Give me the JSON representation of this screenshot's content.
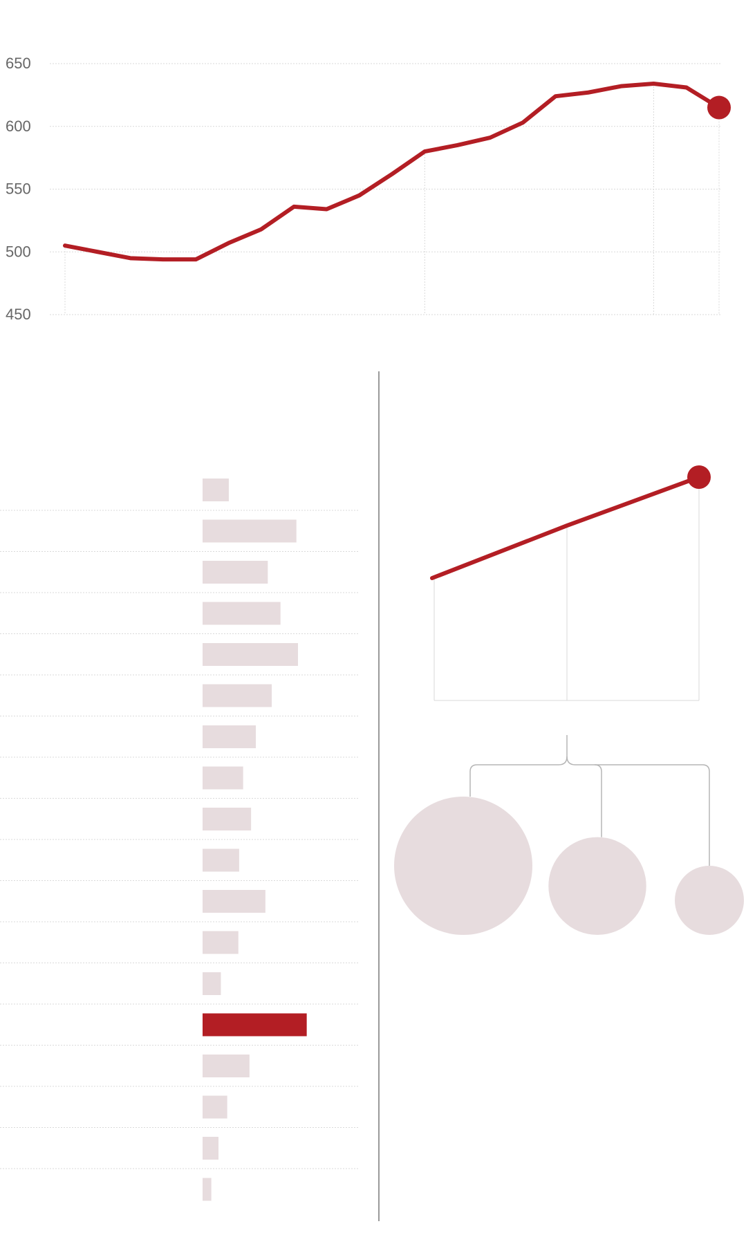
{
  "colors": {
    "accent": "#b31e24",
    "muted": "#e7dcde",
    "grid": "#d9d9d9",
    "tick_text": "#666666",
    "divider": "#9a9a9a",
    "connector": "#b5b5b5"
  },
  "chart_data": [
    {
      "type": "line",
      "y_ticks": [
        "650",
        "600",
        "550",
        "500",
        "450"
      ],
      "ylim": [
        450,
        650
      ],
      "x": [
        0,
        1,
        2,
        3,
        4,
        5,
        6,
        7,
        8,
        9,
        10,
        11,
        12,
        13,
        14,
        15,
        16,
        17,
        18,
        19,
        20
      ],
      "series": [
        {
          "values": [
            505,
            500,
            495,
            494,
            494,
            507,
            518,
            536,
            534,
            545,
            562,
            580,
            585,
            591,
            603,
            624,
            627,
            632,
            634,
            631,
            615
          ],
          "highlight_last": true
        }
      ],
      "grid": true
    },
    {
      "type": "bar",
      "orientation": "horizontal",
      "values": [
        33,
        118,
        82,
        98,
        120,
        87,
        67,
        51,
        61,
        46,
        79,
        45,
        23,
        131,
        59,
        31,
        20,
        11
      ],
      "highlight_index": 13
    },
    {
      "type": "line",
      "x": [
        0,
        1,
        2
      ],
      "series": [
        {
          "values": [
            0,
            0.52,
            1.0
          ],
          "highlight_last": true
        }
      ]
    },
    {
      "type": "bubble",
      "values": [
        1.0,
        0.5,
        0.25
      ]
    }
  ]
}
